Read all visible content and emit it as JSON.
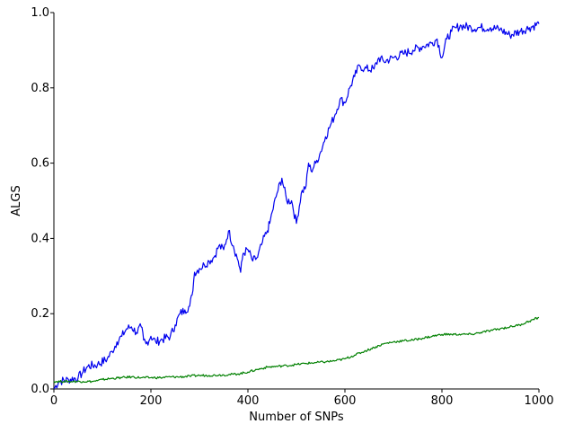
{
  "chart_data": {
    "type": "line",
    "title": "",
    "xlabel": "Number of SNPs",
    "ylabel": "ALGS",
    "xlim": [
      0,
      1000
    ],
    "ylim": [
      0,
      1.0
    ],
    "xticks": [
      0,
      200,
      400,
      600,
      800,
      1000
    ],
    "xtick_labels": [
      "0",
      "200",
      "400",
      "600",
      "800",
      "1000"
    ],
    "yticks": [
      0.0,
      0.2,
      0.4,
      0.6,
      0.8,
      1.0
    ],
    "ytick_labels": [
      "0.0",
      "0.2",
      "0.4",
      "0.6",
      "0.8",
      "1.0"
    ],
    "grid": false,
    "legend": "none",
    "series": [
      {
        "color": "#0000ee",
        "x": [
          0,
          10,
          30,
          50,
          60,
          70,
          90,
          110,
          120,
          130,
          140,
          150,
          160,
          170,
          180,
          185,
          190,
          200,
          210,
          220,
          240,
          250,
          260,
          270,
          280,
          285,
          290,
          300,
          310,
          320,
          330,
          340,
          350,
          360,
          370,
          380,
          385,
          390,
          400,
          410,
          420,
          430,
          440,
          445,
          450,
          460,
          470,
          480,
          490,
          500,
          510,
          520,
          525,
          530,
          540,
          550,
          560,
          570,
          580,
          590,
          600,
          610,
          620,
          630,
          640,
          660,
          670,
          680,
          700,
          720,
          740,
          760,
          780,
          790,
          800,
          810,
          820,
          830,
          840,
          860,
          880,
          900,
          920,
          940,
          960,
          980,
          1000
        ],
        "y": [
          0.0,
          0.02,
          0.025,
          0.03,
          0.045,
          0.06,
          0.065,
          0.08,
          0.1,
          0.125,
          0.14,
          0.16,
          0.165,
          0.15,
          0.165,
          0.13,
          0.12,
          0.14,
          0.125,
          0.13,
          0.14,
          0.17,
          0.2,
          0.21,
          0.22,
          0.25,
          0.31,
          0.32,
          0.33,
          0.34,
          0.35,
          0.38,
          0.37,
          0.42,
          0.38,
          0.34,
          0.31,
          0.36,
          0.37,
          0.34,
          0.35,
          0.39,
          0.42,
          0.44,
          0.47,
          0.52,
          0.56,
          0.5,
          0.5,
          0.44,
          0.52,
          0.54,
          0.6,
          0.58,
          0.6,
          0.63,
          0.67,
          0.7,
          0.73,
          0.77,
          0.76,
          0.8,
          0.83,
          0.86,
          0.85,
          0.85,
          0.88,
          0.87,
          0.88,
          0.89,
          0.9,
          0.91,
          0.92,
          0.93,
          0.88,
          0.93,
          0.95,
          0.96,
          0.965,
          0.96,
          0.96,
          0.96,
          0.955,
          0.94,
          0.95,
          0.96,
          0.97
        ]
      },
      {
        "color": "#008000",
        "x": [
          0,
          20,
          40,
          60,
          80,
          90,
          100,
          120,
          140,
          160,
          180,
          200,
          220,
          240,
          260,
          280,
          300,
          320,
          340,
          360,
          380,
          400,
          420,
          440,
          460,
          480,
          500,
          520,
          540,
          560,
          580,
          600,
          620,
          640,
          660,
          680,
          700,
          720,
          740,
          760,
          780,
          800,
          820,
          840,
          860,
          880,
          900,
          920,
          940,
          960,
          980,
          1000
        ],
        "y": [
          0.02,
          0.02,
          0.02,
          0.02,
          0.02,
          0.022,
          0.025,
          0.028,
          0.03,
          0.032,
          0.03,
          0.03,
          0.03,
          0.032,
          0.032,
          0.034,
          0.036,
          0.036,
          0.037,
          0.038,
          0.04,
          0.045,
          0.052,
          0.058,
          0.06,
          0.062,
          0.065,
          0.068,
          0.07,
          0.072,
          0.075,
          0.08,
          0.09,
          0.1,
          0.11,
          0.12,
          0.125,
          0.128,
          0.13,
          0.135,
          0.14,
          0.145,
          0.145,
          0.145,
          0.145,
          0.15,
          0.155,
          0.16,
          0.165,
          0.17,
          0.18,
          0.19
        ]
      }
    ]
  }
}
